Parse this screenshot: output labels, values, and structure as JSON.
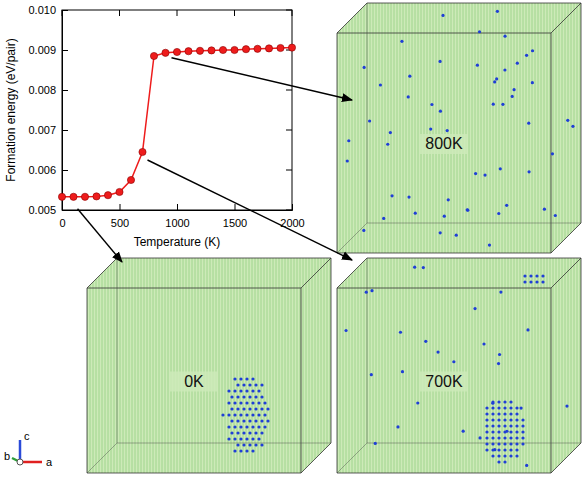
{
  "chart_data": {
    "type": "line",
    "x_label": "Temperature (K)",
    "y_label": "Formation energy (eV/pair)",
    "x": [
      0,
      100,
      200,
      300,
      400,
      500,
      600,
      700,
      800,
      900,
      1000,
      1100,
      1200,
      1300,
      1400,
      1500,
      1600,
      1700,
      1800,
      1900,
      2000
    ],
    "values": [
      0.00533,
      0.00533,
      0.00533,
      0.00534,
      0.00537,
      0.00545,
      0.00575,
      0.00645,
      0.00885,
      0.00893,
      0.00895,
      0.00897,
      0.00898,
      0.00899,
      0.009,
      0.009,
      0.00902,
      0.00903,
      0.00904,
      0.00905,
      0.00906
    ],
    "color": "#ee1c1c",
    "marker": "circle",
    "xlim": [
      0,
      2000
    ],
    "ylim": [
      0.005,
      0.01
    ],
    "xticks": [
      0,
      500,
      1000,
      1500,
      2000
    ],
    "yticks": [
      0.005,
      0.006,
      0.007,
      0.008,
      0.009,
      {
        "value": 0.01,
        "label": "0.010"
      }
    ],
    "snapshots": [
      "800K",
      "700K",
      "0K"
    ],
    "axis_triad": [
      "c",
      "b",
      "a"
    ]
  }
}
